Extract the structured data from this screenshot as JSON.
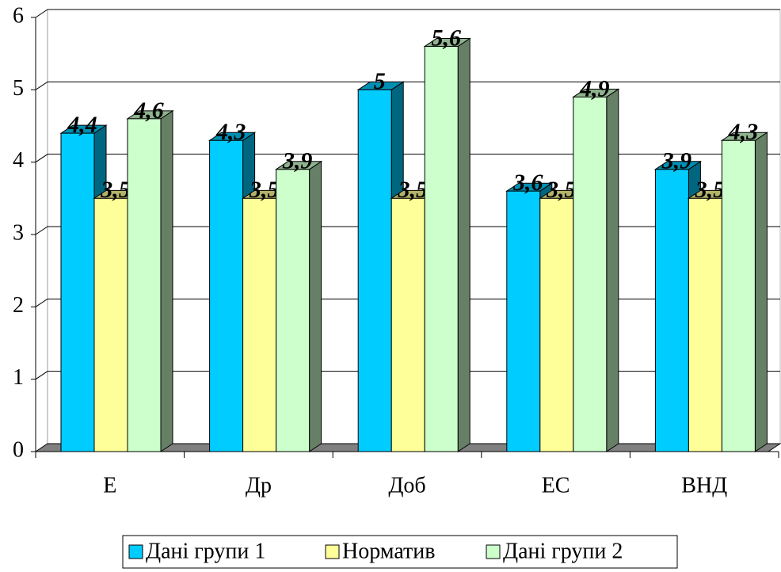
{
  "chart_data": {
    "type": "bar3d",
    "categories": [
      "Е",
      "Др",
      "Доб",
      "ЕС",
      "ВНД"
    ],
    "series": [
      {
        "name": "Дані групи 1",
        "color": "#00ccff",
        "values": [
          4.4,
          4.3,
          5,
          3.6,
          3.9
        ],
        "value_labels": [
          "4,4",
          "4,3",
          "5",
          "3,6",
          "3,9"
        ]
      },
      {
        "name": "Норматив",
        "color": "#ffff99",
        "values": [
          3.5,
          3.5,
          3.5,
          3.5,
          3.5
        ],
        "value_labels": [
          "3,5",
          "3,5",
          "3,5",
          "3,5",
          "3,5"
        ]
      },
      {
        "name": "Дані групи 2",
        "color": "#ccffcc",
        "values": [
          4.6,
          3.9,
          5.6,
          4.9,
          4.3
        ],
        "value_labels": [
          "4,6",
          "3,9",
          "5,6",
          "4,9",
          "4,3"
        ]
      }
    ],
    "ylim": [
      0,
      6
    ],
    "yticks": [
      0,
      1,
      2,
      3,
      4,
      5,
      6
    ],
    "grid": true,
    "legend": "bottom"
  }
}
